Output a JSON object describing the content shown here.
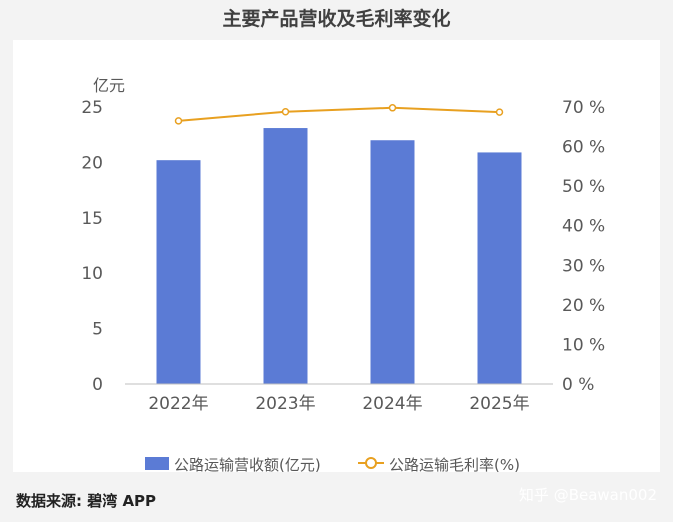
{
  "title": "主要产品营收及毛利率变化",
  "source": "数据来源: 碧湾 APP",
  "watermark": "知乎 @Beawan002",
  "colors": {
    "bar": "#5b7bd5",
    "line": "#e8a020",
    "axis_text": "#595959"
  },
  "chart_data": {
    "type": "bar",
    "title": "主要产品营收及毛利率变化",
    "categories": [
      "2022年",
      "2023年",
      "2024年",
      "2025年"
    ],
    "y_left": {
      "label": "亿元",
      "ylim": [
        0,
        25
      ],
      "ticks": [
        0,
        5,
        10,
        15,
        20,
        25
      ]
    },
    "y_right": {
      "ylim": [
        0,
        70
      ],
      "ticks": [
        "0 %",
        "10 %",
        "20 %",
        "30 %",
        "40 %",
        "50 %",
        "60 %",
        "70 %"
      ]
    },
    "series": [
      {
        "name": "公路运输营收额(亿元)",
        "type": "bar",
        "axis": "left",
        "values": [
          20.2,
          23.1,
          22.0,
          20.9
        ]
      },
      {
        "name": "公路运输毛利率(%)",
        "type": "line",
        "axis": "right",
        "values": [
          66.5,
          68.8,
          69.8,
          68.7
        ]
      }
    ],
    "grid": false,
    "legend": "bottom"
  }
}
